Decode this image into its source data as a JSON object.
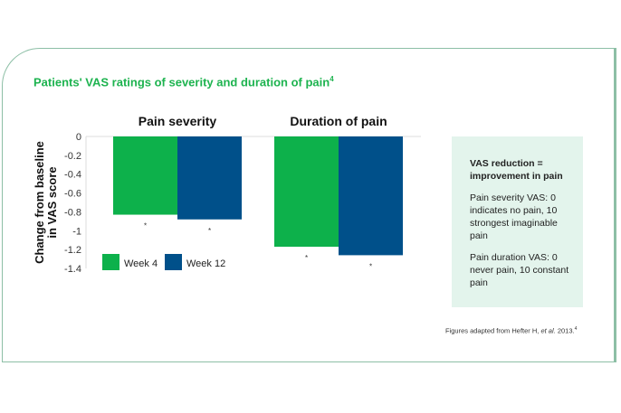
{
  "title": "Patients' VAS ratings of severity and duration of pain",
  "title_ref": "4",
  "note": {
    "heading": "VAS reduction = improvement in pain",
    "line1": "Pain severity VAS: 0 indicates no pain, 10 strongest imaginable pain",
    "line2": "Pain duration VAS: 0 never pain, 10 constant pain"
  },
  "source": {
    "prefix": "Figures adapted from Hefter H, ",
    "italic": "et al.",
    "suffix": " 2013.",
    "ref": "4"
  },
  "chart_data": {
    "type": "bar",
    "categories": [
      "Pain severity",
      "Duration of pain"
    ],
    "series": [
      {
        "name": "Week 4",
        "color": "#0db14b",
        "values": [
          -0.83,
          -1.17
        ]
      },
      {
        "name": "Week 12",
        "color": "#00508a",
        "values": [
          -0.88,
          -1.26
        ]
      }
    ],
    "significance_marker": "*",
    "ylabel": "Change from baseline in VAS score",
    "ylabel_lines": [
      "Change from baseline",
      "in VAS score"
    ],
    "ylim": [
      -1.4,
      0
    ],
    "yticks": [
      "0",
      "-0.2",
      "-0.4",
      "-0.6",
      "-0.8",
      "-1",
      "-1.2",
      "-1.4"
    ],
    "legend": "bottom-left",
    "grid": false
  }
}
